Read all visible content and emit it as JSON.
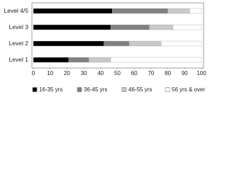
{
  "chart_data": {
    "type": "bar",
    "orientation": "horizontal",
    "stacked": true,
    "categories": [
      "Level 4/5",
      "Level 3",
      "Level 2",
      "Level 1"
    ],
    "series": [
      {
        "name": "16-35 yrs",
        "color": "#000000",
        "values": [
          47,
          46,
          42,
          21
        ]
      },
      {
        "name": "36-45 yrs",
        "color": "#808080",
        "values": [
          33,
          23,
          15,
          12
        ]
      },
      {
        "name": "46-55 yrs",
        "color": "#c8c8c8",
        "values": [
          13,
          14,
          19,
          13
        ]
      },
      {
        "name": "56 yrs & over",
        "color": "#ffffff",
        "values": [
          7,
          17,
          24,
          54
        ]
      }
    ],
    "xlim": [
      0,
      100
    ],
    "xticks": [
      0,
      10,
      20,
      30,
      40,
      50,
      60,
      70,
      80,
      90,
      100
    ],
    "grid": false,
    "legend": "bottom"
  }
}
